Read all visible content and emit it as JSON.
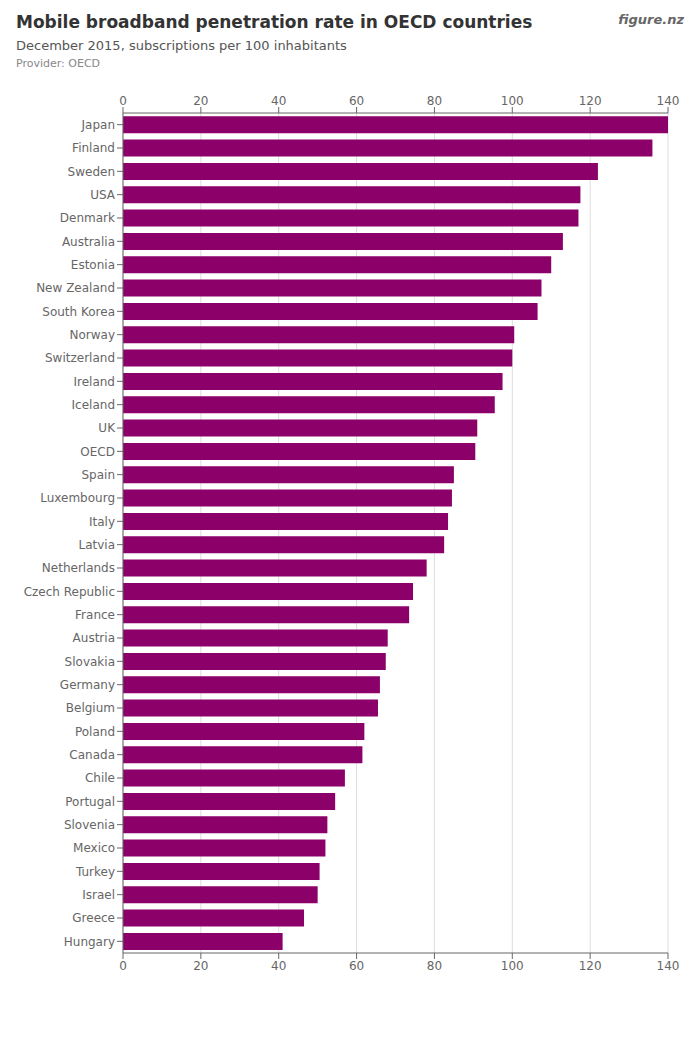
{
  "chart_data": {
    "type": "bar",
    "orientation": "horizontal",
    "title": "Mobile broadband penetration rate in OECD countries",
    "subtitle": "December 2015, subscriptions per 100 inhabitants",
    "annotations": [
      "Provider: OECD",
      "figure.nz"
    ],
    "categories": [
      "Japan",
      "Finland",
      "Sweden",
      "USA",
      "Denmark",
      "Australia",
      "Estonia",
      "New Zealand",
      "South Korea",
      "Norway",
      "Switzerland",
      "Ireland",
      "Iceland",
      "UK",
      "OECD",
      "Spain",
      "Luxembourg",
      "Italy",
      "Latvia",
      "Netherlands",
      "Czech Republic",
      "France",
      "Austria",
      "Slovakia",
      "Germany",
      "Belgium",
      "Poland",
      "Canada",
      "Chile",
      "Portugal",
      "Slovenia",
      "Mexico",
      "Turkey",
      "Israel",
      "Greece",
      "Hungary"
    ],
    "values": [
      140.0,
      136.0,
      122.0,
      117.5,
      117.0,
      113.0,
      110.0,
      107.5,
      106.5,
      100.5,
      100.0,
      97.5,
      95.5,
      91.0,
      90.5,
      85.0,
      84.5,
      83.5,
      82.5,
      78.0,
      74.5,
      73.5,
      68.0,
      67.5,
      66.0,
      65.5,
      62.0,
      61.5,
      57.0,
      54.5,
      52.5,
      52.0,
      50.5,
      50.0,
      46.5,
      41.0
    ],
    "color": "#8B0069",
    "xlim": [
      0,
      140
    ],
    "xticks": [
      0,
      20,
      40,
      60,
      80,
      100,
      120,
      140
    ],
    "grid": true
  }
}
